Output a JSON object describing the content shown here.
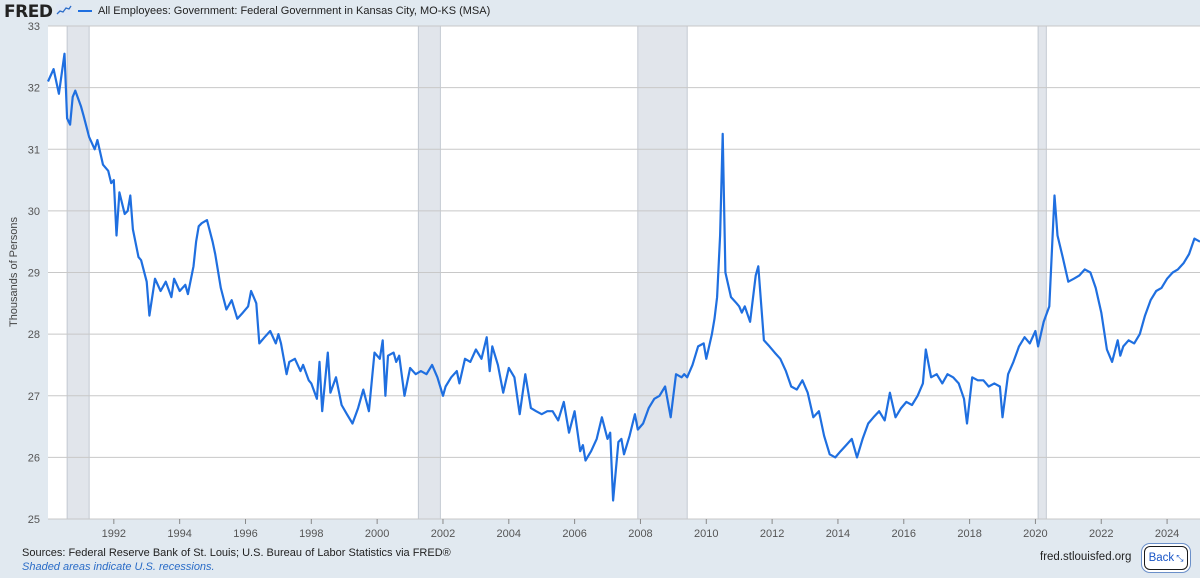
{
  "header": {
    "logo_text": "FRED",
    "legend_label": "All Employees: Government: Federal Government in Kansas City, MO-KS (MSA)"
  },
  "footer": {
    "sources": "Sources: Federal Reserve Bank of St. Louis; U.S. Bureau of Labor Statistics via FRED®",
    "recession_note": "Shaded areas indicate U.S. recessions.",
    "url": "fred.stlouisfed.org",
    "back_label": "Back"
  },
  "colors": {
    "line": "#1f6fe0",
    "recession": "#e1e5eb",
    "grid": "#c8c8c8",
    "plot_bg": "#ffffff"
  },
  "chart_data": {
    "type": "line",
    "title": "",
    "xlabel": "",
    "ylabel": "Thousands of Persons",
    "xlim": [
      1990.0,
      2025.0
    ],
    "ylim": [
      25,
      33
    ],
    "yticks": [
      25,
      26,
      27,
      28,
      29,
      30,
      31,
      32,
      33
    ],
    "xticks": [
      1992,
      1994,
      1996,
      1998,
      2000,
      2002,
      2004,
      2006,
      2008,
      2010,
      2012,
      2014,
      2016,
      2018,
      2020,
      2022,
      2024
    ],
    "grid": "horizontal",
    "legend": "top-left",
    "recessions": [
      [
        1990.58,
        1991.25
      ],
      [
        2001.25,
        2001.92
      ],
      [
        2007.92,
        2009.42
      ],
      [
        2020.08,
        2020.33
      ]
    ],
    "series": [
      {
        "name": "All Employees: Government: Federal Government in Kansas City, MO-KS (MSA)",
        "x": [
          1990.0,
          1990.17,
          1990.33,
          1990.5,
          1990.58,
          1990.67,
          1990.75,
          1990.83,
          1991.0,
          1991.08,
          1991.25,
          1991.42,
          1991.5,
          1991.67,
          1991.83,
          1991.92,
          1992.0,
          1992.08,
          1992.17,
          1992.33,
          1992.42,
          1992.5,
          1992.58,
          1992.75,
          1992.83,
          1993.0,
          1993.08,
          1993.25,
          1993.42,
          1993.58,
          1993.75,
          1993.83,
          1994.0,
          1994.17,
          1994.25,
          1994.42,
          1994.5,
          1994.58,
          1994.67,
          1994.83,
          1995.0,
          1995.08,
          1995.25,
          1995.42,
          1995.58,
          1995.75,
          1995.92,
          1996.08,
          1996.17,
          1996.33,
          1996.42,
          1996.58,
          1996.75,
          1996.92,
          1997.0,
          1997.08,
          1997.25,
          1997.33,
          1997.5,
          1997.67,
          1997.75,
          1997.92,
          1998.0,
          1998.17,
          1998.25,
          1998.33,
          1998.5,
          1998.58,
          1998.75,
          1998.92,
          1999.08,
          1999.25,
          1999.42,
          1999.58,
          1999.75,
          1999.92,
          2000.08,
          2000.17,
          2000.25,
          2000.33,
          2000.5,
          2000.58,
          2000.67,
          2000.83,
          2001.0,
          2001.17,
          2001.33,
          2001.5,
          2001.67,
          2001.83,
          2002.0,
          2002.08,
          2002.25,
          2002.42,
          2002.5,
          2002.67,
          2002.83,
          2003.0,
          2003.17,
          2003.33,
          2003.42,
          2003.5,
          2003.67,
          2003.83,
          2004.0,
          2004.17,
          2004.33,
          2004.5,
          2004.67,
          2004.83,
          2005.0,
          2005.17,
          2005.33,
          2005.5,
          2005.67,
          2005.83,
          2006.0,
          2006.17,
          2006.25,
          2006.33,
          2006.5,
          2006.67,
          2006.83,
          2007.0,
          2007.08,
          2007.17,
          2007.33,
          2007.42,
          2007.5,
          2007.67,
          2007.83,
          2007.92,
          2008.08,
          2008.25,
          2008.42,
          2008.58,
          2008.75,
          2008.92,
          2009.08,
          2009.25,
          2009.33,
          2009.42,
          2009.58,
          2009.75,
          2009.92,
          2010.0,
          2010.17,
          2010.25,
          2010.33,
          2010.42,
          2010.5,
          2010.58,
          2010.75,
          2010.92,
          2011.0,
          2011.08,
          2011.17,
          2011.33,
          2011.5,
          2011.58,
          2011.75,
          2011.92,
          2012.08,
          2012.25,
          2012.42,
          2012.58,
          2012.75,
          2012.92,
          2013.08,
          2013.25,
          2013.42,
          2013.58,
          2013.75,
          2013.92,
          2014.08,
          2014.25,
          2014.42,
          2014.58,
          2014.75,
          2014.92,
          2015.08,
          2015.25,
          2015.42,
          2015.58,
          2015.75,
          2015.92,
          2016.08,
          2016.25,
          2016.42,
          2016.58,
          2016.67,
          2016.83,
          2017.0,
          2017.17,
          2017.33,
          2017.5,
          2017.67,
          2017.83,
          2017.92,
          2018.08,
          2018.25,
          2018.42,
          2018.58,
          2018.75,
          2018.92,
          2019.0,
          2019.17,
          2019.33,
          2019.5,
          2019.67,
          2019.83,
          2020.0,
          2020.08,
          2020.25,
          2020.42,
          2020.58,
          2020.67,
          2020.83,
          2021.0,
          2021.17,
          2021.33,
          2021.5,
          2021.67,
          2021.83,
          2022.0,
          2022.17,
          2022.33,
          2022.5,
          2022.58,
          2022.67,
          2022.83,
          2023.0,
          2023.17,
          2023.33,
          2023.5,
          2023.67,
          2023.83,
          2024.0,
          2024.17,
          2024.33,
          2024.5,
          2024.67,
          2024.83,
          2025.0
        ],
        "y": [
          32.1,
          32.3,
          31.9,
          32.55,
          31.5,
          31.4,
          31.85,
          31.95,
          31.7,
          31.55,
          31.2,
          31.0,
          31.15,
          30.75,
          30.65,
          30.45,
          30.5,
          29.6,
          30.3,
          29.95,
          30.0,
          30.25,
          29.7,
          29.25,
          29.2,
          28.85,
          28.3,
          28.9,
          28.7,
          28.85,
          28.6,
          28.9,
          28.7,
          28.8,
          28.65,
          29.1,
          29.5,
          29.75,
          29.8,
          29.85,
          29.5,
          29.3,
          28.75,
          28.4,
          28.55,
          28.25,
          28.35,
          28.45,
          28.7,
          28.5,
          27.85,
          27.95,
          28.05,
          27.85,
          28.0,
          27.85,
          27.35,
          27.55,
          27.6,
          27.4,
          27.5,
          27.25,
          27.2,
          26.95,
          27.55,
          26.75,
          27.7,
          27.05,
          27.3,
          26.85,
          26.7,
          26.55,
          26.8,
          27.1,
          26.75,
          27.7,
          27.6,
          27.9,
          27.0,
          27.65,
          27.7,
          27.55,
          27.65,
          27.0,
          27.45,
          27.35,
          27.4,
          27.35,
          27.5,
          27.3,
          27.0,
          27.15,
          27.3,
          27.4,
          27.2,
          27.6,
          27.55,
          27.75,
          27.6,
          27.95,
          27.4,
          27.8,
          27.5,
          27.05,
          27.45,
          27.3,
          26.7,
          27.35,
          26.8,
          26.75,
          26.7,
          26.75,
          26.75,
          26.6,
          26.9,
          26.4,
          26.75,
          26.1,
          26.2,
          25.95,
          26.1,
          26.3,
          26.65,
          26.3,
          26.4,
          25.3,
          26.25,
          26.3,
          26.05,
          26.35,
          26.7,
          26.45,
          26.55,
          26.8,
          26.95,
          27.0,
          27.15,
          26.65,
          27.35,
          27.3,
          27.35,
          27.3,
          27.5,
          27.8,
          27.85,
          27.6,
          28.0,
          28.25,
          28.6,
          29.6,
          31.25,
          29.0,
          28.6,
          28.5,
          28.45,
          28.35,
          28.45,
          28.2,
          28.95,
          29.1,
          27.9,
          27.8,
          27.7,
          27.6,
          27.4,
          27.15,
          27.1,
          27.25,
          27.05,
          26.65,
          26.75,
          26.35,
          26.05,
          26.0,
          26.1,
          26.2,
          26.3,
          26.0,
          26.3,
          26.55,
          26.65,
          26.75,
          26.6,
          27.05,
          26.65,
          26.8,
          26.9,
          26.85,
          27.0,
          27.2,
          27.75,
          27.3,
          27.35,
          27.2,
          27.35,
          27.3,
          27.2,
          26.95,
          26.55,
          27.3,
          27.25,
          27.25,
          27.15,
          27.2,
          27.15,
          26.65,
          27.35,
          27.55,
          27.8,
          27.95,
          27.85,
          28.05,
          27.8,
          28.2,
          28.45,
          30.25,
          29.6,
          29.25,
          28.85,
          28.9,
          28.95,
          29.05,
          29.0,
          28.75,
          28.35,
          27.75,
          27.55,
          27.9,
          27.65,
          27.8,
          27.9,
          27.85,
          28.0,
          28.3,
          28.55,
          28.7,
          28.75,
          28.9,
          29.0,
          29.05,
          29.15,
          29.3,
          29.55,
          29.5
        ]
      }
    ]
  }
}
